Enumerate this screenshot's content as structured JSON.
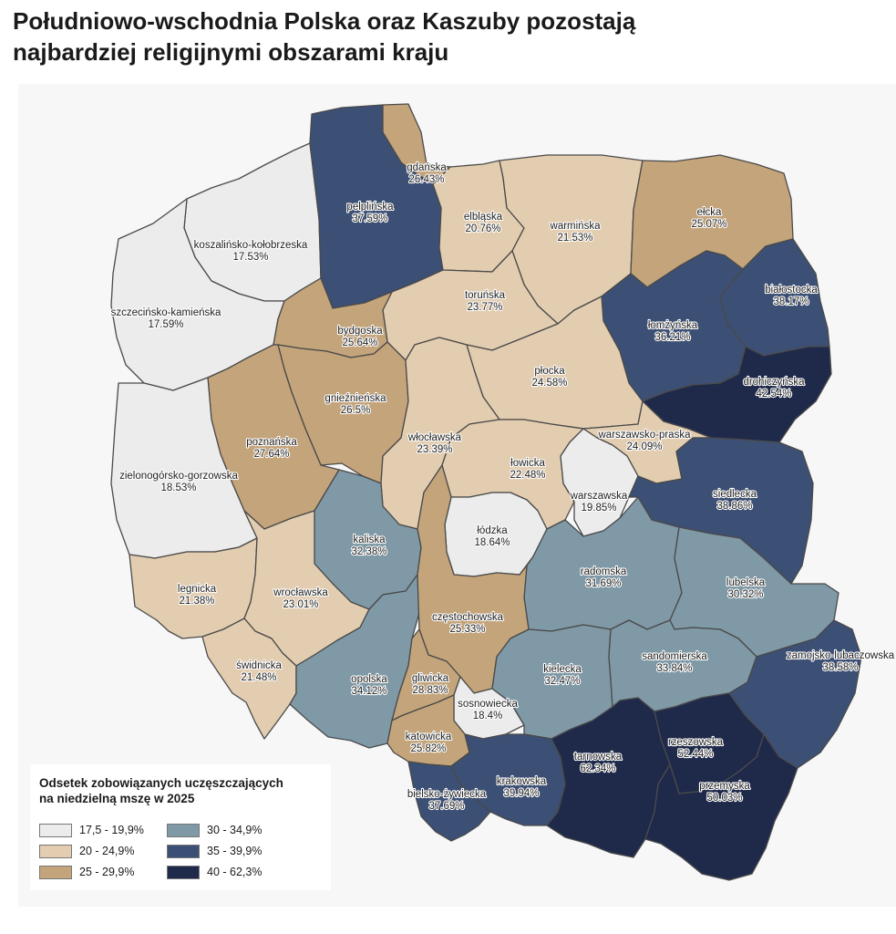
{
  "title_line1": "Południowo-wschodnia Polska oraz Kaszuby pozostają",
  "title_line2": "najbardziej religijnymi obszarami kraju",
  "legend": {
    "title_line1": "Odsetek zobowiązanych uczęszczających",
    "title_line2": "na niedzielną mszę w 2025",
    "items": [
      {
        "label": "17,5 - 19,9%",
        "color": "#ececec"
      },
      {
        "label": "20 - 24,9%",
        "color": "#e3cdb0"
      },
      {
        "label": "25 - 29,9%",
        "color": "#c4a47a"
      },
      {
        "label": "30 - 34,9%",
        "color": "#7f99a6"
      },
      {
        "label": "35 - 39,9%",
        "color": "#3c4f74"
      },
      {
        "label": "40 - 62,3%",
        "color": "#1f2a4a"
      }
    ]
  },
  "dioceses": [
    {
      "name": "gdańska",
      "value": "26.43%"
    },
    {
      "name": "pelplińska",
      "value": "37.59%"
    },
    {
      "name": "koszalińsko-kołobrzeska",
      "value": "17.53%"
    },
    {
      "name": "szczecińsko-kamieńska",
      "value": "17.59%"
    },
    {
      "name": "elbląska",
      "value": "20.76%"
    },
    {
      "name": "warmińska",
      "value": "21.53%"
    },
    {
      "name": "ełcka",
      "value": "25.07%"
    },
    {
      "name": "białostocka",
      "value": "38.17%"
    },
    {
      "name": "łomżyńska",
      "value": "36.21%"
    },
    {
      "name": "drohiczyńska",
      "value": "42.54%"
    },
    {
      "name": "toruńska",
      "value": "23.77%"
    },
    {
      "name": "bydgoska",
      "value": "25.64%"
    },
    {
      "name": "gnieźnieńska",
      "value": "26.5%"
    },
    {
      "name": "poznańska",
      "value": "27.64%"
    },
    {
      "name": "płocka",
      "value": "24.58%"
    },
    {
      "name": "włocławska",
      "value": "23.39%"
    },
    {
      "name": "łowicka",
      "value": "22.48%"
    },
    {
      "name": "warszawsko-praska",
      "value": "24.09%"
    },
    {
      "name": "warszawska",
      "value": "19.85%"
    },
    {
      "name": "siedlecka",
      "value": "38.86%"
    },
    {
      "name": "zielonogórsko-gorzowska",
      "value": "18.53%"
    },
    {
      "name": "kaliska",
      "value": "32.38%"
    },
    {
      "name": "łódzka",
      "value": "18.64%"
    },
    {
      "name": "radomska",
      "value": "31.69%"
    },
    {
      "name": "lubelska",
      "value": "30.32%"
    },
    {
      "name": "legnicka",
      "value": "21.38%"
    },
    {
      "name": "wrocławska",
      "value": "23.01%"
    },
    {
      "name": "częstochowska",
      "value": "25.33%"
    },
    {
      "name": "świdnicka",
      "value": "21.48%"
    },
    {
      "name": "opolska",
      "value": "34.12%"
    },
    {
      "name": "gliwicka",
      "value": "28.83%"
    },
    {
      "name": "kielecka",
      "value": "32.47%"
    },
    {
      "name": "sandomierska",
      "value": "33.84%"
    },
    {
      "name": "zamojsko-lubaczowska",
      "value": "38.58%"
    },
    {
      "name": "sosnowiecka",
      "value": "18.4%"
    },
    {
      "name": "katowicka",
      "value": "25.82%"
    },
    {
      "name": "krakowska",
      "value": "39.94%"
    },
    {
      "name": "tarnowska",
      "value": "62.34%"
    },
    {
      "name": "rzeszowska",
      "value": "52.44%"
    },
    {
      "name": "przemyska",
      "value": "50.03%"
    },
    {
      "name": "bielsko-żywiecka",
      "value": "37.69%"
    }
  ]
}
